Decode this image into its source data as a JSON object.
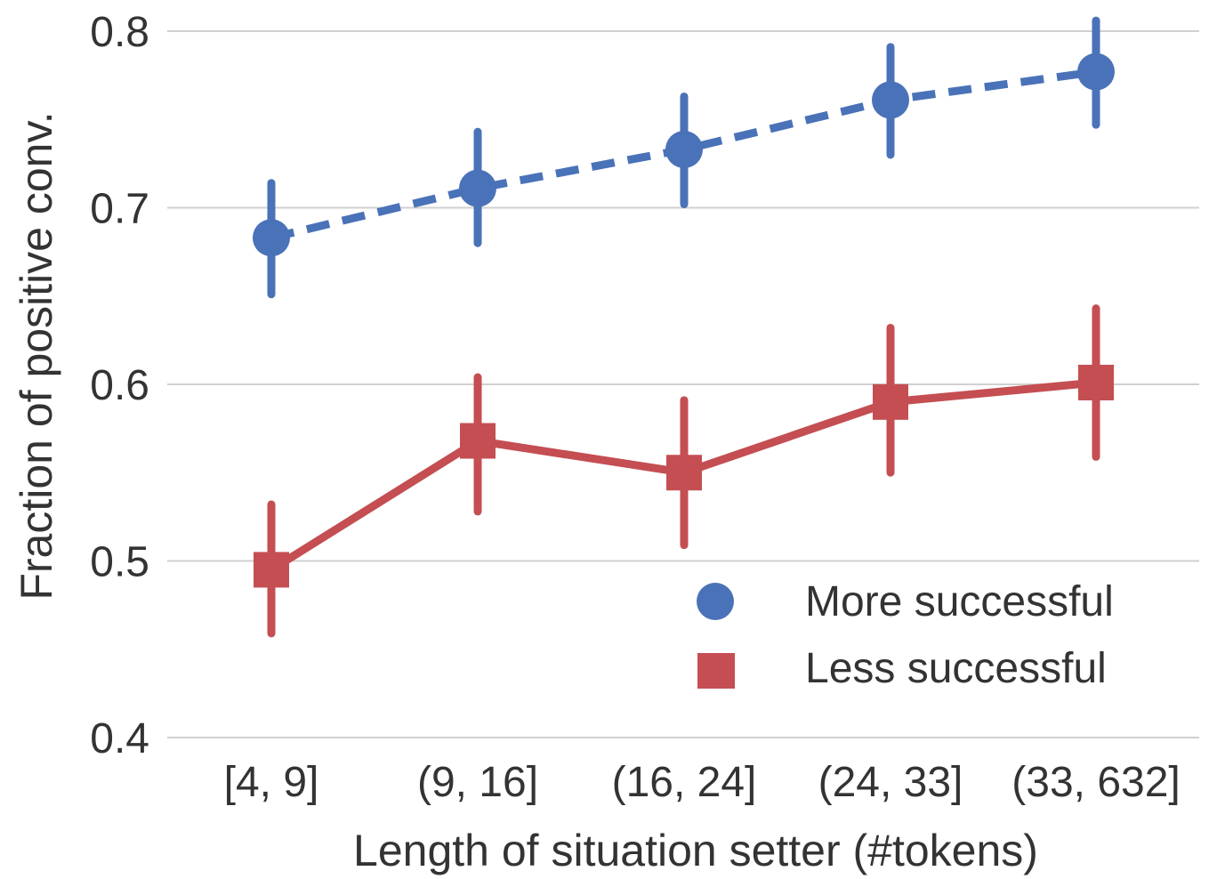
{
  "chart_data": {
    "type": "line",
    "xlabel": "Length of situation setter (#tokens)",
    "ylabel": "Fraction of positive conv.",
    "categories": [
      "[4, 9]",
      "(9, 16]",
      "(16, 24]",
      "(24, 33]",
      "(33, 632]"
    ],
    "ylim": [
      0.4,
      0.8
    ],
    "yticks": [
      0.4,
      0.5,
      0.6,
      0.7,
      0.8
    ],
    "ytick_labels": [
      "0.4",
      "0.5",
      "0.6",
      "0.7",
      "0.8"
    ],
    "grid": "horizontal",
    "legend_position": "bottom-right",
    "series": [
      {
        "name": "More successful",
        "marker": "circle",
        "line": "dashed",
        "color": "#4a72b8",
        "values": [
          0.683,
          0.711,
          0.733,
          0.761,
          0.777
        ],
        "err_low": [
          0.651,
          0.68,
          0.702,
          0.73,
          0.747
        ],
        "err_high": [
          0.714,
          0.743,
          0.763,
          0.791,
          0.806
        ]
      },
      {
        "name": "Less successful",
        "marker": "square",
        "line": "solid",
        "color": "#c44e52",
        "values": [
          0.495,
          0.568,
          0.55,
          0.59,
          0.601
        ],
        "err_low": [
          0.459,
          0.528,
          0.509,
          0.55,
          0.559
        ],
        "err_high": [
          0.532,
          0.604,
          0.591,
          0.632,
          0.643
        ]
      }
    ]
  }
}
